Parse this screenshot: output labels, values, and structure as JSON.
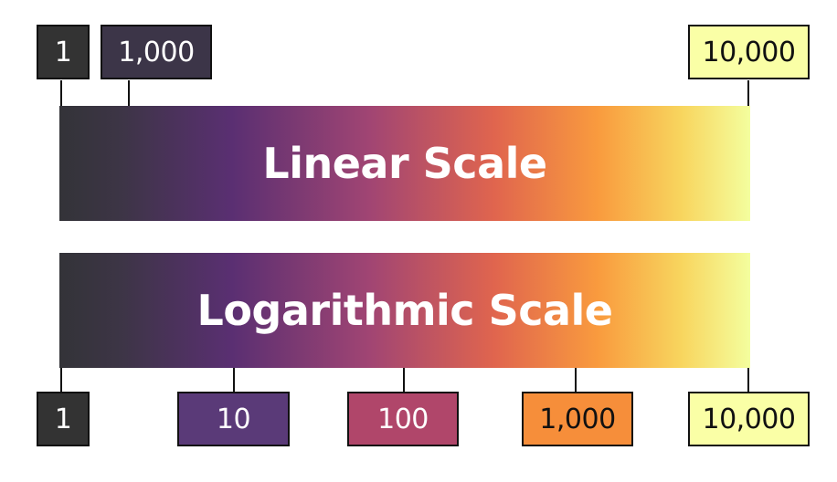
{
  "linear": {
    "title": "Linear Scale",
    "ticks": [
      {
        "label": "1",
        "fill": "#333333",
        "text_color": "#ffffff"
      },
      {
        "label": "1,000",
        "fill": "#3c3548",
        "text_color": "#ffffff"
      },
      {
        "label": "10,000",
        "fill": "#faffa6",
        "text_color": "#111111"
      }
    ]
  },
  "logarithmic": {
    "title": "Logarithmic Scale",
    "ticks": [
      {
        "label": "1",
        "fill": "#333333",
        "text_color": "#ffffff"
      },
      {
        "label": "10",
        "fill": "#5a3a78",
        "text_color": "#ffffff"
      },
      {
        "label": "100",
        "fill": "#b0466a",
        "text_color": "#ffffff"
      },
      {
        "label": "1,000",
        "fill": "#f68e3a",
        "text_color": "#111111"
      },
      {
        "label": "10,000",
        "fill": "#faffa6",
        "text_color": "#111111"
      }
    ]
  },
  "gradient_colors": [
    "#333338",
    "#5a2f72",
    "#a14573",
    "#e0654e",
    "#f99b3e",
    "#f4fe9e"
  ]
}
